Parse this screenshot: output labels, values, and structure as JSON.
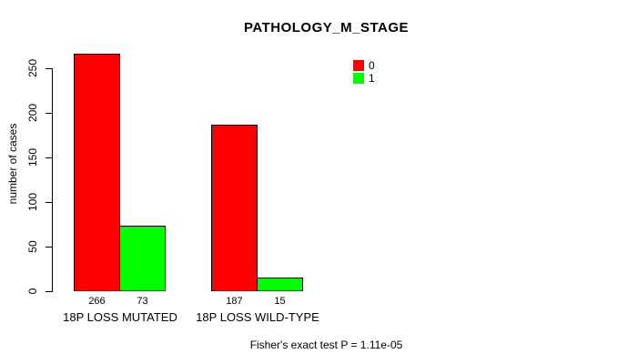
{
  "chart_data": {
    "type": "bar",
    "title": "PATHOLOGY_M_STAGE",
    "ylabel": "number of cases",
    "categories": [
      "18P LOSS MUTATED",
      "18P LOSS WILD-TYPE"
    ],
    "series": [
      {
        "name": "0",
        "color": "#ff0000",
        "values": [
          266,
          187
        ]
      },
      {
        "name": "1",
        "color": "#00ff00",
        "values": [
          73,
          15
        ]
      }
    ],
    "bar_value_labels": [
      [
        266,
        73
      ],
      [
        187,
        15
      ]
    ],
    "yticks": [
      0,
      50,
      100,
      150,
      200,
      250
    ],
    "ylim": [
      0,
      272
    ],
    "grid": false,
    "legend_position": "top-right",
    "footer": "Fisher's exact test P = 1.11e-05",
    "axis_color": "#000000",
    "background": "#ffffff"
  }
}
